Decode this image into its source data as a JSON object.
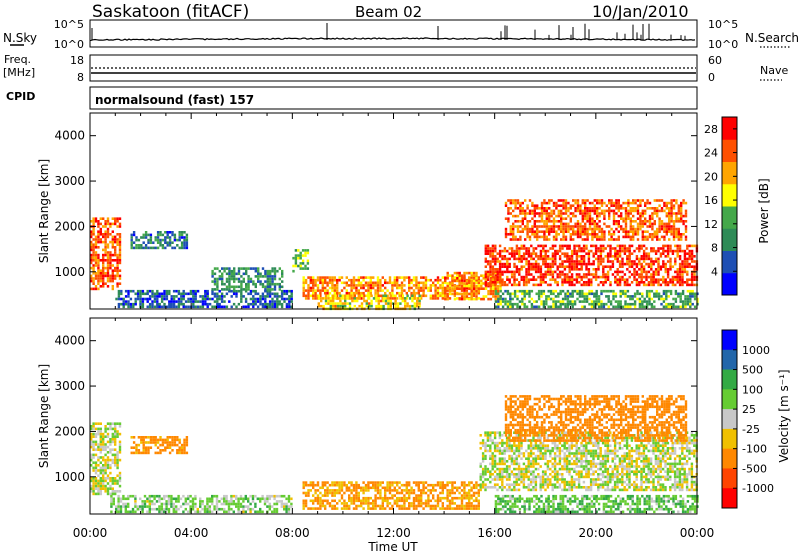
{
  "header": {
    "site": "Saskatoon (fitACF)",
    "beam": "Beam 02",
    "date": "10/Jan/2010"
  },
  "noise_panel": {
    "left_label": "N.Sky",
    "left_ticks": [
      "10^5",
      "10^0"
    ],
    "right_label": "N.Search",
    "right_ticks": [
      "10^5",
      "10^0"
    ]
  },
  "freq_panel": {
    "left_label_1": "Freq.",
    "left_label_2": "[MHz]",
    "left_ticks": [
      "18",
      "8"
    ],
    "right_label": "Nave",
    "right_ticks": [
      "60",
      "0"
    ]
  },
  "cpid_panel": {
    "label": "CPID",
    "mode": "normalsound (fast) 157"
  },
  "x_axis": {
    "label": "Time UT",
    "ticks": [
      "00:00",
      "04:00",
      "08:00",
      "12:00",
      "16:00",
      "20:00",
      "00:00"
    ]
  },
  "colors": {
    "power_scale": [
      "#0000ff",
      "#1e4fb4",
      "#2e8b57",
      "#44a84a",
      "#ffff00",
      "#ffa500",
      "#ff5000",
      "#ff0000"
    ],
    "velocity_scale": [
      "#0000ff",
      "#2266aa",
      "#33aa44",
      "#66cc33",
      "#c8c8c8",
      "#f0c000",
      "#ff8800",
      "#ff4400",
      "#ff0000"
    ],
    "ground_scatter": "#bbbbbb"
  },
  "chart_data": [
    {
      "type": "heatmap",
      "title": "Power",
      "xlabel": "Time UT",
      "ylabel": "Slant Range [km]",
      "xlim": [
        0,
        24
      ],
      "ylim": [
        180,
        4500
      ],
      "yticks": [
        "1000",
        "2000",
        "3000",
        "4000"
      ],
      "colorbar": {
        "label": "Power [dB]",
        "ticks": [
          "4",
          "8",
          "12",
          "16",
          "20",
          "24",
          "28"
        ],
        "range": [
          0,
          30
        ]
      },
      "regions": [
        {
          "t0": 0.0,
          "t1": 1.2,
          "r0": 600,
          "r1": 2200,
          "value": 24
        },
        {
          "t0": 1.6,
          "t1": 3.8,
          "r0": 1500,
          "r1": 1900,
          "value": 8
        },
        {
          "t0": 1.0,
          "t1": 8.0,
          "r0": 200,
          "r1": 600,
          "value": 6
        },
        {
          "t0": 4.8,
          "t1": 7.6,
          "r0": 600,
          "r1": 1100,
          "value": 10
        },
        {
          "t0": 8.0,
          "t1": 8.6,
          "r0": 1000,
          "r1": 1500,
          "value": 14
        },
        {
          "t0": 8.4,
          "t1": 15.4,
          "r0": 400,
          "r1": 900,
          "value": 22
        },
        {
          "t0": 9.0,
          "t1": 13.0,
          "r0": 200,
          "r1": 500,
          "value": 18
        },
        {
          "t0": 14.0,
          "t1": 16.2,
          "r0": 400,
          "r1": 1000,
          "value": 22
        },
        {
          "t0": 15.6,
          "t1": 24.0,
          "r0": 700,
          "r1": 1600,
          "value": 26
        },
        {
          "t0": 16.4,
          "t1": 23.6,
          "r0": 1700,
          "r1": 2600,
          "value": 24
        },
        {
          "t0": 16.0,
          "t1": 24.0,
          "r0": 200,
          "r1": 600,
          "value": 12
        }
      ]
    },
    {
      "type": "heatmap",
      "title": "Velocity",
      "xlabel": "Time UT",
      "ylabel": "Slant Range [km]",
      "xlim": [
        0,
        24
      ],
      "ylim": [
        180,
        4500
      ],
      "yticks": [
        "1000",
        "2000",
        "3000",
        "4000"
      ],
      "colorbar": {
        "label": "Velocity [m s⁻¹]",
        "ticks": [
          "1000",
          "500",
          "100",
          "25",
          "-25",
          "-100",
          "-500",
          "-1000"
        ]
      },
      "regions": [
        {
          "t0": 0.0,
          "t1": 1.2,
          "r0": 600,
          "r1": 2200,
          "value": 0
        },
        {
          "t0": 1.6,
          "t1": 3.8,
          "r0": 1500,
          "r1": 1900,
          "value": -150
        },
        {
          "t0": 0.8,
          "t1": 8.0,
          "r0": 200,
          "r1": 600,
          "value": 50
        },
        {
          "t0": 8.4,
          "t1": 15.4,
          "r0": 300,
          "r1": 900,
          "value": -120
        },
        {
          "t0": 15.4,
          "t1": 24.0,
          "r0": 700,
          "r1": 2000,
          "value": 0
        },
        {
          "t0": 16.4,
          "t1": 23.6,
          "r0": 1800,
          "r1": 2800,
          "value": -200
        },
        {
          "t0": 16.0,
          "t1": 24.0,
          "r0": 200,
          "r1": 600,
          "value": 80
        }
      ]
    }
  ]
}
